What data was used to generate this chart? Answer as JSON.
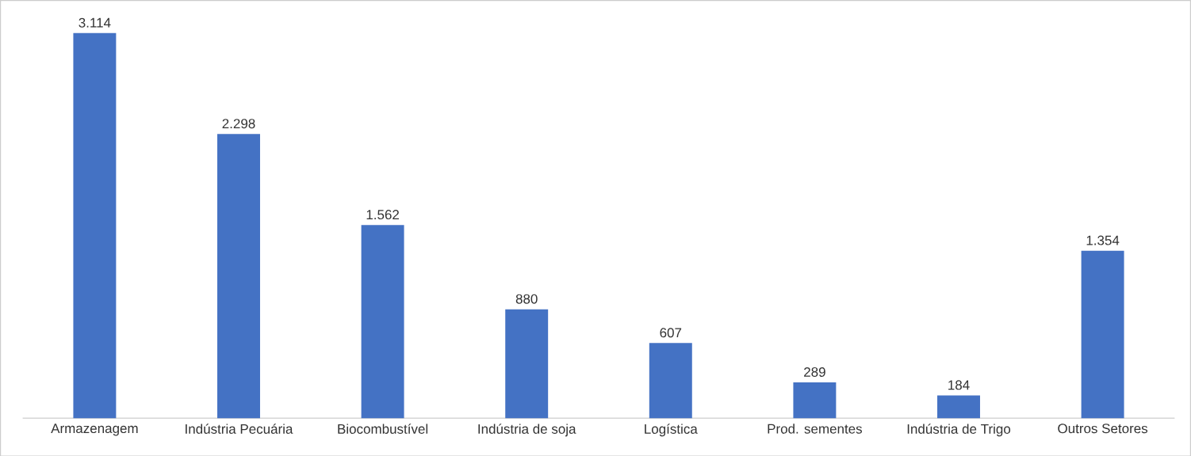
{
  "chart_data": {
    "type": "bar",
    "categories": [
      "Armazenagem",
      "Indústria Pecuária",
      "Biocombustível",
      "Indústria de soja",
      "Logística",
      "Prod. sementes",
      "Indústria de Trigo",
      "Outros Setores"
    ],
    "values": [
      3114,
      2298,
      1562,
      880,
      607,
      289,
      184,
      1354
    ],
    "value_labels": [
      "3.114",
      "2.298",
      "1.562",
      "880",
      "607",
      "289",
      "184",
      "1.354"
    ],
    "color": "#4472c4",
    "tick_labels": "x"
  }
}
